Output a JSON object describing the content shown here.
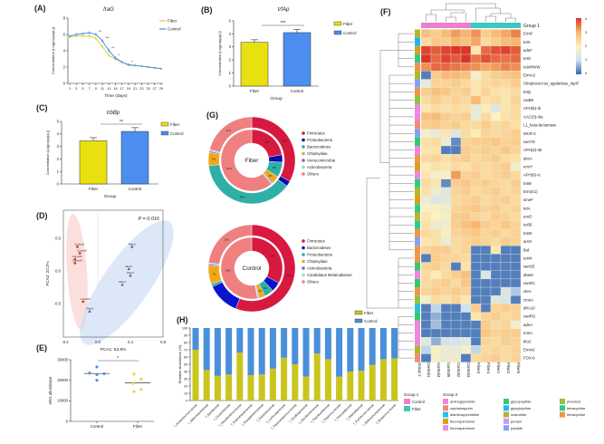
{
  "chart_data": [
    {
      "panel": "(A)",
      "type": "line",
      "title": "fraG",
      "xlabel": "Time (days)",
      "ylabel": "Concentration (Log(copy/μL))",
      "x": [
        1,
        3,
        5,
        7,
        9,
        11,
        13,
        15,
        17,
        19,
        21,
        23,
        25,
        27,
        29
      ],
      "xticks": [
        "1",
        "3",
        "5",
        "7",
        "9",
        "11",
        "13",
        "15",
        "17",
        "19",
        "21",
        "23",
        "25",
        "27",
        "29"
      ],
      "ylim": [
        0,
        8
      ],
      "yticks": [
        "0",
        "2",
        "4",
        "6",
        "8"
      ],
      "series": [
        {
          "name": "Fiber",
          "color": "#d6d629",
          "values": [
            5.7,
            5.8,
            5.8,
            5.8,
            5.5,
            4.5,
            3.4,
            3.0,
            2.6,
            2.2,
            2.2,
            2.1,
            2.0,
            1.9,
            1.8
          ],
          "err": [
            0.2,
            0.2,
            0.2,
            0.2,
            0.2,
            0.2,
            0.2,
            0.2,
            0.15,
            0.15,
            0.1,
            0.1,
            0.1,
            0.1,
            0.1
          ]
        },
        {
          "name": "Control",
          "color": "#4a8fe0",
          "values": [
            5.8,
            6.0,
            6.1,
            6.2,
            6.0,
            5.2,
            4.0,
            3.1,
            2.6,
            2.3,
            2.2,
            2.1,
            2.0,
            1.9,
            1.8
          ],
          "err": [
            0.2,
            0.2,
            0.2,
            0.2,
            0.2,
            0.25,
            0.3,
            0.3,
            0.2,
            0.15,
            0.1,
            0.1,
            0.1,
            0.1,
            0.1
          ]
        }
      ],
      "annotations": [
        {
          "x": 9,
          "text": "**"
        },
        {
          "x": 11,
          "text": "***"
        },
        {
          "x": 13,
          "text": "**"
        },
        {
          "x": 15,
          "text": "*"
        },
        {
          "x": 19,
          "text": "*"
        }
      ]
    },
    {
      "panel": "(B)",
      "type": "bar",
      "title": "trfAp",
      "xlabel": "Group",
      "ylabel": "Concentration (Log(copy/μL))",
      "categories": [
        "Fiber",
        "Control"
      ],
      "values": [
        3.35,
        4.1
      ],
      "err": [
        0.2,
        0.25
      ],
      "colors": [
        "#e8e00f",
        "#4b8ef0"
      ],
      "ylim": [
        0,
        5
      ],
      "yticks": [
        "0",
        "1",
        "2",
        "3",
        "4",
        "5"
      ],
      "significance": "***",
      "legend": [
        "Fiber",
        "Control"
      ]
    },
    {
      "panel": "(C)",
      "type": "bar",
      "title": "trbBp",
      "xlabel": "Group",
      "ylabel": "Concentration (Log(copy/μL))",
      "categories": [
        "Fiber",
        "Control"
      ],
      "values": [
        3.45,
        4.2
      ],
      "err": [
        0.25,
        0.3
      ],
      "colors": [
        "#e8e00f",
        "#4b8ef0"
      ],
      "ylim": [
        0,
        5
      ],
      "yticks": [
        "0",
        "1",
        "2",
        "3",
        "4",
        "5"
      ],
      "significance": "**",
      "legend": [
        "Fiber",
        "Control"
      ]
    },
    {
      "panel": "(D)",
      "type": "scatter",
      "xlabel": "PCA1: 52.8%",
      "ylabel": "PCA2: 22.2%",
      "annotation": "P = 0.016",
      "xlim": [
        -0.4,
        0.8
      ],
      "xticks": [
        "-0.4",
        "0.0",
        "0.4",
        "0.8"
      ],
      "xtick_values": [
        -0.4,
        0.0,
        0.4,
        0.8
      ],
      "yticks": [
        "0.5",
        "0.0",
        "-0.5"
      ],
      "ytick_values": [
        0.5,
        0.0,
        -0.5
      ],
      "series": [
        {
          "name": "Control",
          "color": "#d9363e",
          "points": [
            {
              "label": "Control1",
              "x": -0.25,
              "y": 0.37
            },
            {
              "label": "Control5",
              "x": -0.22,
              "y": 0.27
            },
            {
              "label": "Control2",
              "x": -0.28,
              "y": 0.18
            },
            {
              "label": "Control4",
              "x": -0.28,
              "y": 0.12
            },
            {
              "label": "Control3",
              "x": -0.18,
              "y": -0.47
            }
          ]
        },
        {
          "name": "Fiber",
          "color": "#2f5fb8",
          "points": [
            {
              "label": "Fiber5",
              "x": 0.42,
              "y": 0.37
            },
            {
              "label": "Fiber2",
              "x": 0.38,
              "y": 0.03
            },
            {
              "label": "Fiber4",
              "x": 0.4,
              "y": -0.07
            },
            {
              "label": "Fiber1",
              "x": 0.3,
              "y": -0.21
            },
            {
              "label": "Fiber3",
              "x": -0.1,
              "y": -0.62
            }
          ]
        }
      ]
    },
    {
      "panel": "(E)",
      "type": "scatter",
      "ylabel": "ARG abundance",
      "categories": [
        "Control",
        "Fiber"
      ],
      "ylim": [
        0,
        30000
      ],
      "yticks": [
        "0",
        "10000",
        "20000",
        "30000"
      ],
      "series": [
        {
          "name": "Control",
          "color": "#4a8fe0",
          "values": [
            26500,
            23500,
            22800,
            23200,
            20000
          ],
          "mean": 23300
        },
        {
          "name": "Fiber",
          "color": "#e6d84a",
          "values": [
            23000,
            20500,
            18500,
            15500,
            14500
          ],
          "mean": 18800
        }
      ],
      "significance": "*"
    },
    {
      "panel": "(G)",
      "type": "pie",
      "donuts": [
        {
          "center_label": "Fiber",
          "legend": [
            "Firmicutes",
            "Proteobacteria",
            "Bacteroidetes",
            "Chlamydiae",
            "Verrucomicrobia",
            "Actinobacteria",
            "Others"
          ],
          "colors": [
            "#d7193f",
            "#0a0ab4",
            "#2fb0a6",
            "#f0a818",
            "#8e5bd0",
            "#86e6b6",
            "#ef8080"
          ],
          "outer": [
            33,
            2,
            38,
            5,
            0.5,
            0.5,
            21
          ],
          "inner": [
            22,
            4,
            8,
            4,
            0.5,
            0.5,
            61
          ]
        },
        {
          "center_label": "Control",
          "legend": [
            "Firmicutes",
            "Bacteroidetes",
            "Proteobacteria",
            "Chlamydiae",
            "Actinobacteria",
            "Candidatus Melainabacter",
            "Others"
          ],
          "colors": [
            "#d7193f",
            "#0a14d0",
            "#2fb0a6",
            "#f0a818",
            "#8e5bd0",
            "#86e6b6",
            "#ef8080"
          ],
          "outer": [
            56,
            12,
            1,
            7,
            0.5,
            0.5,
            23
          ],
          "inner": [
            33,
            5,
            5,
            3,
            0.5,
            0.5,
            53
          ]
        }
      ]
    },
    {
      "panel": "(H)",
      "type": "bar",
      "stacked": true,
      "ylabel": "Relative abundance (%)",
      "ylim": [
        0,
        100
      ],
      "yticks": [
        "0",
        "10",
        "20",
        "30",
        "40",
        "50",
        "60",
        "70",
        "80",
        "90",
        "100"
      ],
      "categories": [
        "f_Acidaminococcaceae",
        "f_Akkermansiaceae",
        "f_Bacillaceae",
        "f_Clostridiaceae",
        "f_Desulfovibrionaceae",
        "f_Enterobacteriaceae",
        "f_Erysipelotrichaceae",
        "f_Eubacteriaceae",
        "f_Lachnospiraceae",
        "f_Peptostreptococcaceae",
        "f_Oscillospiraceae",
        "f_Odoribacteraceae",
        "f_Paenibacillaceae",
        "f_Peptococcaceae",
        "f_Prevotellaceae",
        "f_Rikenellaceae",
        "f_Ruminococcaceae",
        "f_Selenomonadaceae",
        "f_Streptococcaceae"
      ],
      "series": [
        {
          "name": "Fiber",
          "color": "#c9c51e",
          "values": [
            70,
            42,
            34,
            36,
            66,
            35,
            36,
            44,
            59,
            50,
            33,
            65,
            57,
            33,
            40,
            41,
            49,
            57,
            58
          ]
        },
        {
          "name": "Control",
          "color": "#4a8fd9",
          "values": [
            30,
            58,
            66,
            64,
            34,
            65,
            64,
            56,
            41,
            50,
            67,
            35,
            43,
            67,
            60,
            59,
            51,
            43,
            42
          ]
        }
      ]
    },
    {
      "panel": "(F)",
      "type": "heatmap",
      "columns": [
        "Control1",
        "Control4",
        "Control5",
        "Control2",
        "Control3",
        "Fiber3",
        "Fiber4",
        "Fiber1",
        "Fiber2",
        "Fiber5"
      ],
      "column_groups": [
        "Control",
        "Control",
        "Control",
        "Control",
        "Control",
        "Fiber",
        "Fiber",
        "Fiber",
        "Fiber",
        "Fiber"
      ],
      "group1_label": "Group 1",
      "group2_label": "Group 2",
      "colorbar_ticks": [
        "4",
        "3",
        "2",
        "1",
        "0"
      ],
      "colorscale": [
        "#3465b0",
        "#cfe2ee",
        "#fdf2bd",
        "#f8b56c",
        "#dc3528"
      ],
      "rows": [
        "ErmF",
        "tetX",
        "adeF",
        "tetO",
        "tetW/N/W",
        "ErmA2",
        "Streptococcus_agalactiae_mprF",
        "tetQ",
        "catB8",
        "APH(6)-Ib",
        "AAC(3)-IIIa",
        "L1_beta-lactamase",
        "MCR-4",
        "vanYD",
        "APH(3)-IIb",
        "abcA",
        "emrY",
        "APH(6)-Ic",
        "tetW",
        "Erm(41)",
        "smeF",
        "tetA",
        "ereD",
        "tet36",
        "tet40",
        "arnS",
        "tbd",
        "tet44",
        "vanSE",
        "abeM",
        "vanRC",
        "oleA",
        "cmeA",
        "dfrA10",
        "vanRG",
        "adeA",
        "mmA",
        "kfoC",
        "Erm42",
        "FOX-6"
      ],
      "row_class": [
        7,
        6,
        3,
        11,
        12,
        7,
        9,
        12,
        10,
        0,
        0,
        1,
        9,
        5,
        0,
        12,
        3,
        0,
        11,
        7,
        3,
        11,
        7,
        11,
        12,
        9,
        12,
        12,
        5,
        0,
        5,
        12,
        10,
        2,
        5,
        0,
        0,
        0,
        7,
        1
      ],
      "values": [
        [
          2.8,
          2.6,
          2.9,
          3.2,
          3.0,
          3.3,
          2.6,
          2.9,
          3.1,
          3.4
        ],
        [
          2.4,
          2.7,
          2.6,
          3.0,
          2.8,
          3.1,
          2.4,
          2.6,
          2.9,
          3.0
        ],
        [
          3.9,
          3.7,
          3.9,
          4.1,
          4.2,
          2.2,
          3.6,
          3.8,
          3.9,
          3.7
        ],
        [
          4.1,
          3.6,
          3.9,
          3.7,
          4.3,
          3.5,
          3.8,
          3.6,
          3.5,
          3.6
        ],
        [
          3.3,
          3.6,
          3.6,
          3.5,
          3.4,
          3.3,
          3.1,
          3.2,
          3.4,
          3.3
        ],
        [
          0.2,
          2.6,
          2.9,
          2.9,
          2.8,
          1.8,
          2.4,
          2.6,
          2.7,
          2.8
        ],
        [
          1.5,
          2.5,
          2.5,
          2.6,
          2.4,
          2.2,
          2.4,
          2.5,
          2.4,
          2.6
        ],
        [
          2.6,
          2.8,
          2.7,
          2.5,
          2.6,
          2.2,
          2.5,
          2.3,
          2.2,
          2.4
        ],
        [
          2.4,
          2.6,
          2.4,
          2.5,
          2.4,
          2.9,
          2.3,
          2.4,
          2.2,
          2.5
        ],
        [
          2.2,
          2.4,
          2.3,
          2.4,
          2.3,
          1.5,
          2.1,
          1.3,
          2.2,
          2.4
        ],
        [
          2.8,
          2.9,
          2.6,
          2.5,
          2.6,
          1.6,
          2.4,
          2.0,
          2.3,
          2.4
        ],
        [
          2.6,
          2.7,
          2.5,
          2.6,
          2.4,
          2.4,
          2.6,
          2.4,
          2.5,
          2.3
        ],
        [
          1.8,
          1.5,
          2.2,
          1.3,
          2.4,
          2.1,
          2.5,
          2.4,
          2.5,
          2.6
        ],
        [
          2.3,
          2.4,
          1.6,
          0.3,
          2.5,
          2.6,
          2.6,
          2.7,
          2.5,
          2.6
        ],
        [
          2.2,
          2.3,
          0.2,
          0.2,
          2.6,
          2.5,
          2.6,
          2.5,
          2.7,
          2.5
        ],
        [
          2.4,
          2.5,
          2.3,
          2.5,
          2.6,
          2.4,
          2.5,
          2.6,
          2.4,
          2.3
        ],
        [
          2.1,
          2.3,
          2.2,
          2.4,
          2.3,
          2.5,
          2.4,
          2.5,
          2.6,
          1.8
        ],
        [
          2.2,
          1.8,
          1.9,
          3.2,
          2.5,
          2.6,
          2.4,
          2.5,
          2.6,
          2.4
        ],
        [
          2.4,
          2.2,
          0.3,
          2.6,
          2.7,
          2.5,
          2.6,
          2.5,
          2.4,
          2.6
        ],
        [
          2.3,
          1.6,
          1.3,
          2.5,
          2.6,
          2.4,
          2.5,
          2.6,
          2.4,
          2.5
        ],
        [
          1.6,
          1.3,
          1.4,
          2.4,
          2.5,
          2.6,
          2.4,
          2.5,
          2.6,
          2.4
        ],
        [
          2.0,
          1.9,
          1.7,
          2.5,
          2.6,
          2.7,
          2.5,
          2.6,
          2.4,
          2.5
        ],
        [
          2.2,
          2.0,
          1.8,
          2.6,
          2.7,
          2.5,
          2.4,
          2.6,
          2.5,
          2.4
        ],
        [
          2.3,
          1.6,
          1.7,
          2.6,
          2.8,
          3.0,
          2.6,
          2.5,
          2.7,
          2.5
        ],
        [
          2.4,
          2.3,
          1.9,
          2.5,
          2.6,
          2.7,
          2.5,
          2.6,
          2.4,
          2.5
        ],
        [
          2.2,
          2.3,
          1.6,
          2.4,
          2.5,
          2.6,
          2.5,
          2.4,
          2.6,
          2.5
        ],
        [
          2.5,
          2.6,
          2.6,
          2.4,
          2.5,
          0.2,
          0.2,
          2.2,
          0.2,
          0.2
        ],
        [
          0.2,
          2.6,
          2.5,
          2.5,
          2.4,
          0.2,
          0.2,
          0.2,
          0.2,
          0.2
        ],
        [
          2.5,
          2.6,
          2.4,
          0.2,
          2.3,
          0.2,
          0.2,
          0.2,
          0.2,
          0.2
        ],
        [
          2.4,
          2.1,
          2.4,
          2.6,
          2.8,
          0.2,
          1.3,
          0.2,
          0.2,
          0.2
        ],
        [
          2.4,
          2.5,
          2.6,
          2.4,
          2.7,
          0.2,
          0.2,
          0.2,
          0.2,
          0.2
        ],
        [
          2.5,
          2.6,
          2.5,
          2.6,
          2.5,
          0.2,
          0.2,
          0.2,
          1.2,
          0.8
        ],
        [
          1.8,
          2.4,
          2.3,
          2.5,
          2.2,
          0.2,
          0.2,
          1.3,
          1.2,
          0.2
        ],
        [
          0.2,
          0.9,
          0.2,
          0.2,
          1.0,
          2.6,
          0.2,
          2.5,
          2.6,
          2.5
        ],
        [
          0.2,
          0.6,
          0.2,
          0.2,
          0.2,
          2.2,
          2.5,
          2.6,
          2.4,
          2.5
        ],
        [
          0.2,
          0.7,
          0.2,
          0.2,
          0.2,
          0.2,
          2.6,
          2.4,
          2.5,
          1.7
        ],
        [
          0.2,
          0.2,
          0.2,
          0.2,
          0.2,
          0.2,
          2.7,
          2.5,
          2.6,
          2.6
        ],
        [
          1.4,
          0.6,
          1.1,
          1.1,
          1.3,
          0.2,
          2.5,
          2.4,
          2.6,
          2.5
        ],
        [
          0.9,
          1.9,
          1.6,
          1.5,
          1.8,
          0.9,
          2.4,
          2.5,
          2.4,
          2.5
        ],
        [
          0.2,
          1.8,
          1.6,
          1.7,
          0.2,
          2.4,
          2.5,
          2.6,
          2.4,
          2.5
        ]
      ],
      "group1_legend": [
        {
          "label": "Control",
          "color": "#ef7fc8"
        },
        {
          "label": "Fiber",
          "color": "#3cc9bf"
        }
      ],
      "group2_legend": [
        {
          "label": "aminoglycoside",
          "color": "#ee86e0"
        },
        {
          "label": "cephalosporin",
          "color": "#f08a78"
        },
        {
          "label": "diaminopyrimidine",
          "color": "#2bbfe6"
        },
        {
          "label": "fluoroquinolone",
          "color": "#d6a21a"
        },
        {
          "label": "fluoroquinolone",
          "color": "#e08ff0"
        },
        {
          "label": "glycopeptide",
          "color": "#35c96a"
        },
        {
          "label": "glycylcycline",
          "color": "#22b5f0"
        },
        {
          "label": "macrolide",
          "color": "#b3b62a"
        },
        {
          "label": "penam",
          "color": "#c79cf0"
        },
        {
          "label": "peptide",
          "color": "#7fa4f4"
        },
        {
          "label": "phenicol",
          "color": "#8cc43f"
        },
        {
          "label": "tetracycline",
          "color": "#2dcc88"
        },
        {
          "label": "tetracycline",
          "color": "#f09448"
        }
      ]
    }
  ]
}
